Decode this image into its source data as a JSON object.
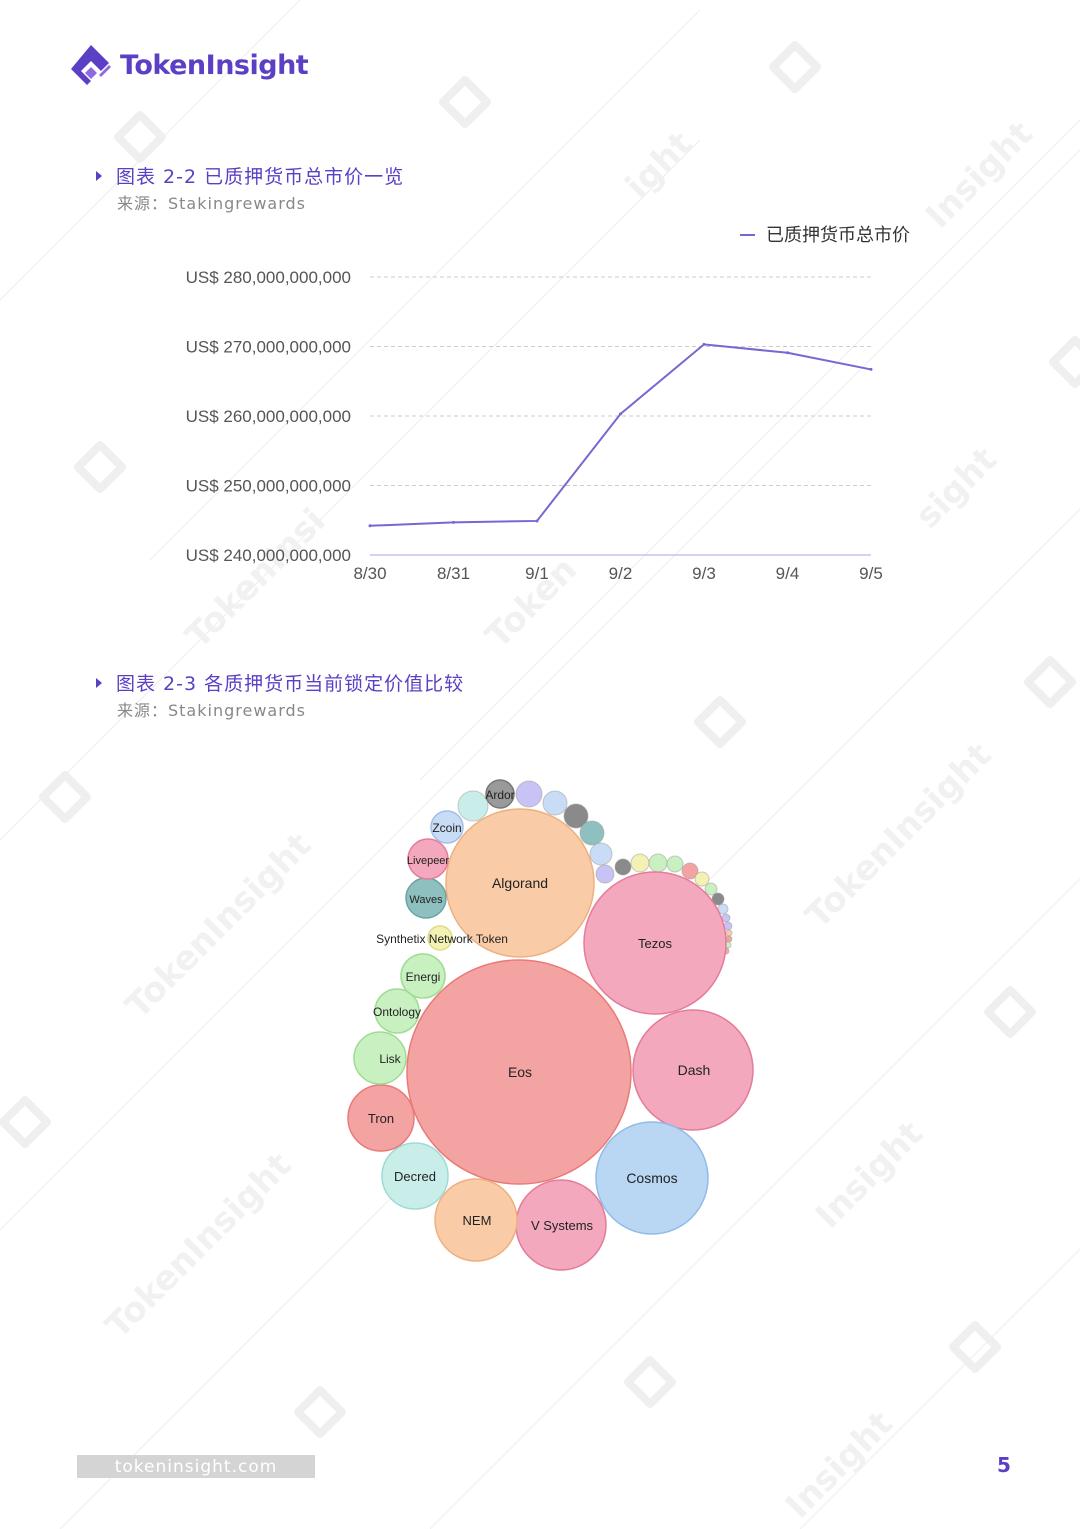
{
  "header": {
    "brand": "TokenInsight"
  },
  "figure_2_2": {
    "title": "图表 2-2 已质押货币总市价一览",
    "source": "来源：Stakingrewards"
  },
  "figure_2_3": {
    "title": "图表 2-3 各质押货币当前锁定价值比较",
    "source": "来源：Stakingrewards"
  },
  "chart_data": [
    {
      "type": "line",
      "title": "",
      "legend": "已质押货币总市价",
      "legend_position": "top-right",
      "categories": [
        "8/30",
        "8/31",
        "9/1",
        "9/2",
        "9/3",
        "9/4",
        "9/5"
      ],
      "series": [
        {
          "name": "已质押货币总市价",
          "values": [
            244200000000,
            244700000000,
            244900000000,
            260300000000,
            270300000000,
            269100000000,
            266700000000
          ]
        }
      ],
      "y_ticks": [
        240000000000,
        250000000000,
        260000000000,
        270000000000,
        280000000000
      ],
      "y_tick_labels": [
        "US$ 240,000,000,000",
        "US$ 250,000,000,000",
        "US$ 260,000,000,000",
        "US$ 270,000,000,000",
        "US$ 280,000,000,000"
      ],
      "ylim": [
        240000000000,
        280000000000
      ],
      "xlabel": "",
      "ylabel": "",
      "grid": true,
      "colors": {
        "line": "#7a66d0",
        "grid": "#cccccc"
      }
    },
    {
      "type": "bubble",
      "title": "",
      "labeled_bubbles": [
        {
          "label": "Eos",
          "color": "#f4a3a3",
          "stroke": "#ea7a7a"
        },
        {
          "label": "Algorand",
          "color": "#f9cba7",
          "stroke": "#eeb07f"
        },
        {
          "label": "Tezos",
          "color": "#f3a8bd",
          "stroke": "#e47c99"
        },
        {
          "label": "Dash",
          "color": "#f3a8bd",
          "stroke": "#e47c99"
        },
        {
          "label": "Cosmos",
          "color": "#b9d7f3",
          "stroke": "#8fbbe6"
        },
        {
          "label": "V Systems",
          "color": "#f3a8bd",
          "stroke": "#e47c99"
        },
        {
          "label": "NEM",
          "color": "#f9cba7",
          "stroke": "#eeb07f"
        },
        {
          "label": "Decred",
          "color": "#c9eeea",
          "stroke": "#9fdbd4"
        },
        {
          "label": "Tron",
          "color": "#f4a3a3",
          "stroke": "#ea7a7a"
        },
        {
          "label": "Lisk",
          "color": "#c8f0c0",
          "stroke": "#9fdc93"
        },
        {
          "label": "Ontology",
          "color": "#c8f0c0",
          "stroke": "#9fdc93"
        },
        {
          "label": "Energi",
          "color": "#c8f0c0",
          "stroke": "#9fdc93"
        },
        {
          "label": "Synthetix Network Token",
          "color": "#f3f2b4",
          "stroke": "#dedc86"
        },
        {
          "label": "Waves",
          "color": "#8fc0c0",
          "stroke": "#6aa3a3"
        },
        {
          "label": "Livepeer",
          "color": "#f3a8bd",
          "stroke": "#e47c99"
        },
        {
          "label": "Zcoin",
          "color": "#c9dcf6",
          "stroke": "#9fc0ea"
        },
        {
          "label": "Ardor",
          "color": "#9a9a9a",
          "stroke": "#777777"
        }
      ],
      "small_bubble_colors": [
        "#c9eeea",
        "#c7c3f4",
        "#c9dcf6",
        "#8a8a8a",
        "#8fc0c0",
        "#c9dcf6",
        "#c7c3f4",
        "#8a8a8a",
        "#f3f2b4",
        "#c8f0c0",
        "#c8f0c0",
        "#f4a3a3",
        "#f3f2b4",
        "#c8f0c0",
        "#8a8a8a",
        "#c9dcf6",
        "#c7c3f4",
        "#c7c3f4",
        "#f9cba7",
        "#f4a3a3",
        "#c8f0c0",
        "#f3a8bd"
      ]
    }
  ],
  "footer": {
    "url": "tokeninsight.com",
    "page_number": "5"
  }
}
